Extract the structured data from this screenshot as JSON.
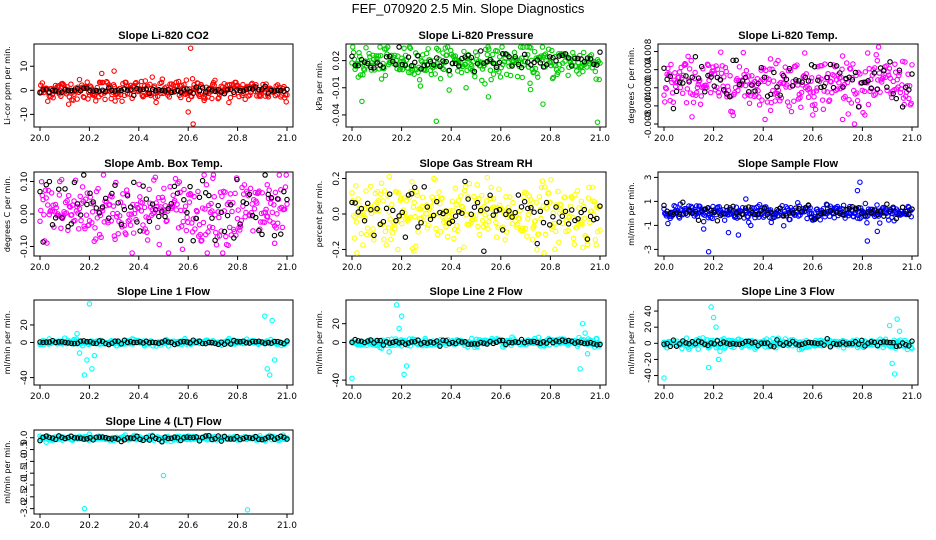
{
  "page_title": "FEF_070920  2.5 Min. Slope Diagnostics",
  "chart_data": [
    {
      "type": "scatter",
      "title": "Slope Li-820 CO2",
      "ylabel": "Li-cor ppm per min.",
      "color": "#ff0000",
      "xlim": [
        20.0,
        21.0
      ],
      "ylim": [
        -14,
        18
      ],
      "xticks": [
        "20.0",
        "20.2",
        "20.4",
        "20.6",
        "20.8",
        "21.0"
      ],
      "yticks": [
        {
          "v": -10,
          "t": "-10"
        },
        {
          "v": 0,
          "t": "0"
        },
        {
          "v": 10,
          "t": "10"
        }
      ],
      "spread": 2.2,
      "outliers": [
        [
          20.57,
          -3
        ],
        [
          20.6,
          -9
        ],
        [
          20.61,
          17.5
        ],
        [
          20.62,
          -14
        ],
        [
          20.47,
          -5
        ],
        [
          20.3,
          8
        ],
        [
          20.25,
          7
        ]
      ],
      "black_spread": 0.6
    },
    {
      "type": "scatter",
      "title": "Slope Li-820 Pressure",
      "ylabel": "kPa per min.",
      "color": "#00cc00",
      "xlim": [
        20.0,
        21.0
      ],
      "ylim": [
        -0.05,
        0.035
      ],
      "xticks": [
        "20.0",
        "20.2",
        "20.4",
        "20.6",
        "20.8",
        "21.0"
      ],
      "yticks": [
        {
          "v": -0.04,
          "t": "-0.04"
        },
        {
          "v": -0.01,
          "t": "-0.01"
        },
        {
          "v": 0.02,
          "t": "0.02"
        }
      ],
      "spread": 0.009,
      "center": 0.018,
      "outliers": [
        [
          20.04,
          -0.025
        ],
        [
          20.34,
          -0.047
        ],
        [
          20.55,
          -0.02
        ],
        [
          20.72,
          -0.012
        ],
        [
          20.99,
          -0.048
        ],
        [
          20.46,
          -0.01
        ],
        [
          20.77,
          -0.028
        ]
      ],
      "black_spread": 0.006
    },
    {
      "type": "scatter",
      "title": "Slope Li-820 Temp.",
      "ylabel": "degrees C per min.",
      "color": "#ff00ff",
      "xlim": [
        20.0,
        21.0
      ],
      "ylim": [
        -0.008,
        0.009
      ],
      "xticks": [
        "20.0",
        "20.2",
        "20.4",
        "20.6",
        "20.8",
        "21.0"
      ],
      "yticks": [
        {
          "v": -0.008,
          "t": "-0.008"
        },
        {
          "v": -0.004,
          "t": "-0.004"
        },
        {
          "v": 0,
          "t": "0.000"
        },
        {
          "v": 0.004,
          "t": "0.004"
        },
        {
          "v": 0.008,
          "t": "0.008"
        }
      ],
      "spread": 0.0028,
      "center": 0.001,
      "outliers": [
        [
          20.46,
          0.006
        ],
        [
          20.6,
          -0.006
        ],
        [
          20.72,
          0.007
        ],
        [
          20.81,
          -0.006
        ],
        [
          20.72,
          -0.007
        ],
        [
          20.43,
          -0.005
        ],
        [
          20.86,
          0.006
        ]
      ],
      "black_spread": 0.0025
    },
    {
      "type": "scatter",
      "title": "Slope Amb. Box Temp.",
      "ylabel": "degrees C per min.",
      "color": "#ff00ff",
      "xlim": [
        20.0,
        21.0
      ],
      "ylim": [
        -0.12,
        0.12
      ],
      "xticks": [
        "20.0",
        "20.2",
        "20.4",
        "20.6",
        "20.8",
        "21.0"
      ],
      "yticks": [
        {
          "v": -0.1,
          "t": "-0.10"
        },
        {
          "v": 0,
          "t": "0.00"
        },
        {
          "v": 0.1,
          "t": "0.10"
        }
      ],
      "spread": 0.055,
      "center": 0.01,
      "outliers": [
        [
          20.08,
          0.1
        ],
        [
          20.7,
          0.11
        ],
        [
          20.92,
          0.09
        ],
        [
          20.95,
          -0.09
        ]
      ],
      "black_spread": 0.05
    },
    {
      "type": "scatter",
      "title": "Slope Gas Stream RH",
      "ylabel": "percent per min.",
      "color": "#ffff00",
      "xlim": [
        20.0,
        21.0
      ],
      "ylim": [
        -0.22,
        0.22
      ],
      "xticks": [
        "20.0",
        "20.2",
        "20.4",
        "20.6",
        "20.8",
        "21.0"
      ],
      "yticks": [
        {
          "v": -0.2,
          "t": "-0.2"
        },
        {
          "v": 0,
          "t": "0.0"
        },
        {
          "v": 0.2,
          "t": "0.2"
        }
      ],
      "spread": 0.09,
      "center": 0.0,
      "outliers": [
        [
          20.02,
          -0.22
        ],
        [
          20.15,
          0.21
        ],
        [
          20.25,
          -0.21
        ],
        [
          20.33,
          0.2
        ]
      ],
      "black_spread": 0.07
    },
    {
      "type": "scatter",
      "title": "Slope Sample Flow",
      "ylabel": "ml/min per min.",
      "color": "#0000ff",
      "xlim": [
        20.0,
        21.0
      ],
      "ylim": [
        -3.3,
        3.2
      ],
      "xticks": [
        "20.0",
        "20.2",
        "20.4",
        "20.6",
        "20.8",
        "21.0"
      ],
      "yticks": [
        {
          "v": -3,
          "t": "-3"
        },
        {
          "v": -1,
          "t": "-1"
        },
        {
          "v": 1,
          "t": "1"
        },
        {
          "v": 3,
          "t": "3"
        }
      ],
      "spread": 0.3,
      "center": 0.1,
      "outliers": [
        [
          20.18,
          -3.2
        ],
        [
          20.16,
          -1.3
        ],
        [
          20.26,
          -1.6
        ],
        [
          20.3,
          -1.8
        ],
        [
          20.33,
          1.2
        ],
        [
          20.79,
          2.6
        ],
        [
          20.78,
          1.9
        ],
        [
          20.82,
          -2.3
        ],
        [
          20.86,
          -1.5
        ],
        [
          20.87,
          -0.8
        ],
        [
          20.35,
          -1.0
        ]
      ],
      "black_spread": 0.3
    },
    {
      "type": "scatter",
      "title": "Slope Line 1 Flow",
      "ylabel": "ml/min per min.",
      "color": "#00ffff",
      "xlim": [
        20.0,
        21.0
      ],
      "ylim": [
        -45,
        45
      ],
      "xticks": [
        "20.0",
        "20.2",
        "20.4",
        "20.6",
        "20.8",
        "21.0"
      ],
      "yticks": [
        {
          "v": -40,
          "t": "-40"
        },
        {
          "v": 0,
          "t": "0"
        },
        {
          "v": 20,
          "t": "20"
        }
      ],
      "spread": 1.5,
      "center": 0.0,
      "outliers": [
        [
          20.2,
          44
        ],
        [
          20.19,
          -20
        ],
        [
          20.21,
          -30
        ],
        [
          20.18,
          -37
        ],
        [
          20.16,
          -12
        ],
        [
          20.22,
          -15
        ],
        [
          20.92,
          -30
        ],
        [
          20.93,
          -37
        ],
        [
          20.94,
          25
        ],
        [
          20.91,
          30
        ],
        [
          20.95,
          -20
        ],
        [
          20.15,
          10
        ],
        [
          20.1,
          5
        ]
      ],
      "black_spread": 1.0
    },
    {
      "type": "scatter",
      "title": "Slope Line 2 Flow",
      "ylabel": "ml/min per min.",
      "color": "#00ffff",
      "xlim": [
        20.0,
        21.0
      ],
      "ylim": [
        -42,
        42
      ],
      "xticks": [
        "20.0",
        "20.2",
        "20.4",
        "20.6",
        "20.8",
        "21.0"
      ],
      "yticks": [
        {
          "v": -40,
          "t": "-40"
        },
        {
          "v": 0,
          "t": "0"
        },
        {
          "v": 20,
          "t": "20"
        }
      ],
      "spread": 2,
      "center": 0.0,
      "outliers": [
        [
          20.0,
          -38
        ],
        [
          20.18,
          40
        ],
        [
          20.2,
          28
        ],
        [
          20.21,
          -34
        ],
        [
          20.19,
          15
        ],
        [
          20.22,
          -25
        ],
        [
          20.92,
          -28
        ],
        [
          20.93,
          20
        ],
        [
          20.94,
          10
        ],
        [
          20.95,
          -12
        ],
        [
          20.15,
          -10
        ]
      ],
      "black_spread": 1.5
    },
    {
      "type": "scatter",
      "title": "Slope Line 3 Flow",
      "ylabel": "ml/min per min.",
      "color": "#00ffff",
      "xlim": [
        20.0,
        21.0
      ],
      "ylim": [
        -48,
        50
      ],
      "xticks": [
        "20.0",
        "20.2",
        "20.4",
        "20.6",
        "20.8",
        "21.0"
      ],
      "yticks": [
        {
          "v": -40,
          "t": "-40"
        },
        {
          "v": -20,
          "t": "-20"
        },
        {
          "v": 0,
          "t": "0"
        },
        {
          "v": 20,
          "t": "20"
        },
        {
          "v": 40,
          "t": "40"
        }
      ],
      "spread": 3,
      "center": 0.0,
      "outliers": [
        [
          20.0,
          -43
        ],
        [
          20.19,
          45
        ],
        [
          20.2,
          32
        ],
        [
          20.18,
          -30
        ],
        [
          20.22,
          -20
        ],
        [
          20.21,
          20
        ],
        [
          20.92,
          -25
        ],
        [
          20.93,
          -38
        ],
        [
          20.94,
          30
        ],
        [
          20.91,
          22
        ],
        [
          20.95,
          15
        ]
      ],
      "black_spread": 2
    },
    {
      "type": "scatter",
      "title": "Slope Line 4 (LT) Flow",
      "ylabel": "ml/min per min.",
      "color": "#00ffff",
      "xlim": [
        20.0,
        21.0
      ],
      "ylim": [
        -3.1,
        0.2
      ],
      "xticks": [
        "20.0",
        "20.2",
        "20.4",
        "20.6",
        "20.8",
        "21.0"
      ],
      "yticks": [
        {
          "v": -3,
          "t": "-3.0"
        },
        {
          "v": -2.5,
          "t": "-2.5"
        },
        {
          "v": -2,
          "t": "-2.0"
        },
        {
          "v": -1.5,
          "t": "-1.5"
        },
        {
          "v": -1,
          "t": "-1.0"
        },
        {
          "v": -0.5,
          "t": "-0.5"
        },
        {
          "v": 0,
          "t": "0.0"
        }
      ],
      "spread": 0.05,
      "center": -0.02,
      "outliers": [
        [
          20.18,
          -3.0
        ],
        [
          20.5,
          -1.6
        ],
        [
          20.84,
          -3.05
        ],
        [
          20.2,
          0.15
        ],
        [
          20.93,
          0.1
        ]
      ],
      "black_spread": 0.05
    }
  ]
}
